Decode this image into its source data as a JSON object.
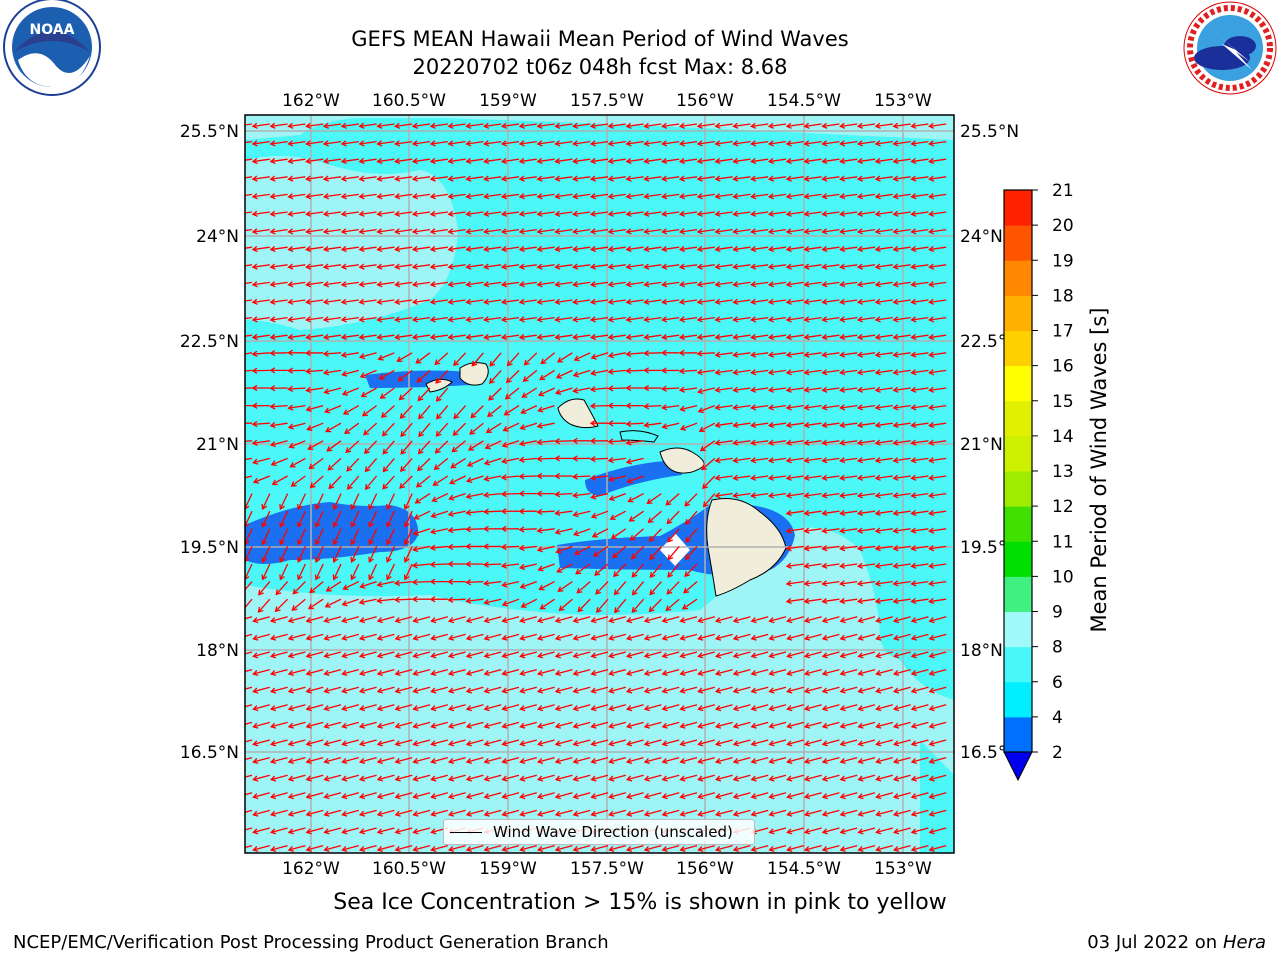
{
  "header": {
    "title_line1": "GEFS MEAN Hawaii Mean Period of Wind Waves",
    "title_line2": "20220702 t06z 048h fcst   Max: 8.68"
  },
  "logos": {
    "left": {
      "name": "noaa-logo",
      "text": "NOAA"
    },
    "right": {
      "name": "nws-logo",
      "text": "NATIONAL WEATHER SERVICE"
    }
  },
  "map": {
    "lon_ticks": [
      "162°W",
      "160.5°W",
      "159°W",
      "157.5°W",
      "156°W",
      "154.5°W",
      "153°W"
    ],
    "lat_ticks": [
      "25.5°N",
      "24°N",
      "22.5°N",
      "21°N",
      "19.5°N",
      "18°N",
      "16.5°N"
    ],
    "legend_label": "Wind Wave Direction (unscaled)",
    "colors": {
      "ocean_light": "#9ff5f5",
      "ocean_mid": "#4cf7f7",
      "ocean_dark": "#1a70f0",
      "land": "#f0edda",
      "arrow": "#ff0000",
      "grid": "#b0b0b0"
    }
  },
  "colorbar": {
    "label": "Mean Period of Wind Waves [s]",
    "ticks": [
      "2",
      "4",
      "6",
      "8",
      "9",
      "10",
      "11",
      "12",
      "13",
      "14",
      "15",
      "16",
      "17",
      "18",
      "19",
      "20",
      "21"
    ],
    "colors": [
      "#0070ff",
      "#00eeff",
      "#48f8f8",
      "#a0fafa",
      "#40f080",
      "#00e000",
      "#40e000",
      "#a0ec00",
      "#ccf000",
      "#e0f000",
      "#ffff00",
      "#ffd000",
      "#ffb000",
      "#ff8800",
      "#ff5500",
      "#ff2200",
      "#ff0000"
    ],
    "extend_color": "#0000ee"
  },
  "footer": {
    "ice_note": "Sea Ice Concentration > 15% is shown in pink to yellow",
    "left": "NCEP/EMC/Verification Post Processing Product Generation Branch",
    "right_date": "03 Jul 2022 on ",
    "right_host": "Hera"
  }
}
